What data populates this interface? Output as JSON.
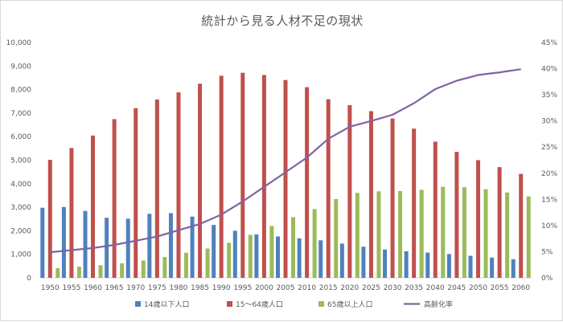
{
  "chart_data": {
    "type": "bar",
    "title": "統計から見る人材不足の現状",
    "categories": [
      "1950",
      "1955",
      "1960",
      "1965",
      "1970",
      "1975",
      "1980",
      "1985",
      "1990",
      "1995",
      "2000",
      "2005",
      "2010",
      "2015",
      "2020",
      "2025",
      "2030",
      "2035",
      "2040",
      "2045",
      "2050",
      "2055",
      "2060"
    ],
    "series": [
      {
        "name": "14歳以下人口",
        "kind": "bar",
        "axis": "left",
        "color": "#4F81BD",
        "values": [
          2979,
          3012,
          2843,
          2553,
          2515,
          2722,
          2751,
          2603,
          2249,
          2001,
          1847,
          1759,
          1680,
          1595,
          1457,
          1324,
          1204,
          1129,
          1073,
          1012,
          939,
          861,
          791
        ]
      },
      {
        "name": "15～64歳人口",
        "kind": "bar",
        "axis": "left",
        "color": "#C0504D",
        "values": [
          5017,
          5517,
          6047,
          6744,
          7212,
          7581,
          7883,
          8251,
          8590,
          8716,
          8622,
          8409,
          8103,
          7592,
          7341,
          7085,
          6773,
          6343,
          5787,
          5353,
          5001,
          4706,
          4418
        ]
      },
      {
        "name": "65歳以上人口",
        "kind": "bar",
        "axis": "left",
        "color": "#9BBB59",
        "values": [
          411,
          475,
          535,
          618,
          739,
          887,
          1065,
          1247,
          1489,
          1826,
          2204,
          2576,
          2925,
          3347,
          3612,
          3677,
          3685,
          3741,
          3868,
          3856,
          3768,
          3626,
          3464
        ]
      },
      {
        "name": "高齢化率",
        "kind": "line",
        "axis": "right",
        "color": "#8064A2",
        "values": [
          4.9,
          5.3,
          5.7,
          6.3,
          7.1,
          7.9,
          9.1,
          10.3,
          12.1,
          14.6,
          17.4,
          20.2,
          23.0,
          26.6,
          28.9,
          30.0,
          31.2,
          33.4,
          36.1,
          37.7,
          38.8,
          39.3,
          39.9
        ]
      }
    ],
    "ylim": [
      0,
      10000
    ],
    "y_ticks": [
      "0",
      "1,000",
      "2,000",
      "3,000",
      "4,000",
      "5,000",
      "6,000",
      "7,000",
      "8,000",
      "9,000",
      "10,000"
    ],
    "y2lim": [
      0,
      45
    ],
    "y2_ticks": [
      "0%",
      "5%",
      "10%",
      "15%",
      "20%",
      "25%",
      "30%",
      "35%",
      "40%",
      "45%"
    ],
    "grid": false,
    "legend": "bottom"
  }
}
